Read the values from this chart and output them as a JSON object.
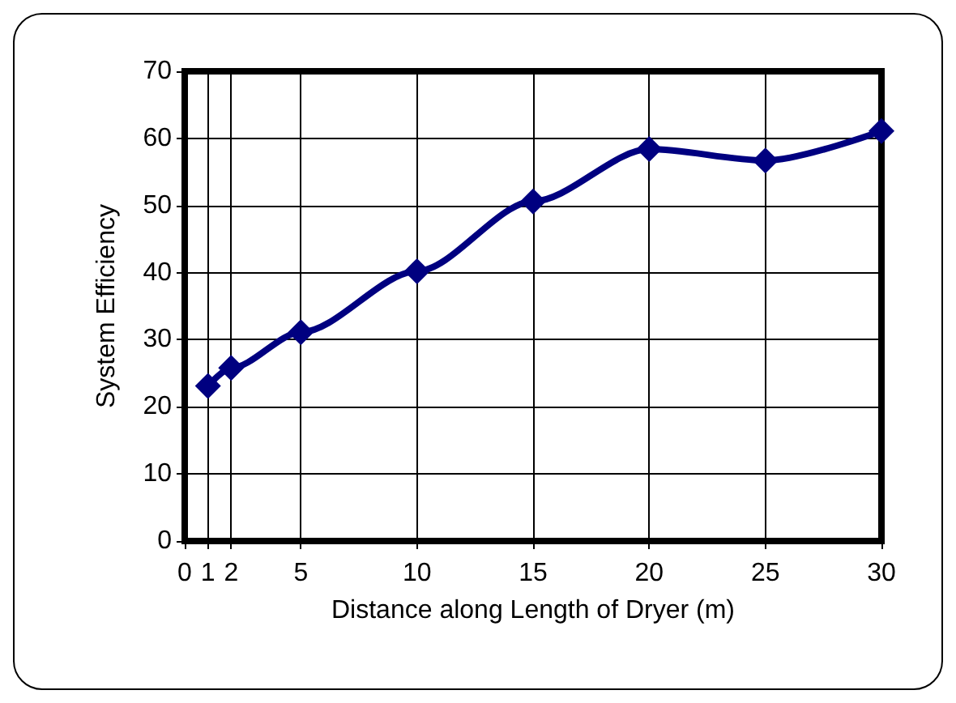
{
  "chart_data": {
    "type": "line",
    "xlabel": "Distance along Length of Dryer (m)",
    "ylabel": "System Efficiency",
    "x": [
      1,
      2,
      5,
      10,
      15,
      20,
      25,
      30
    ],
    "series": [
      {
        "color": "#000080",
        "values": [
          23.1,
          25.8,
          31.1,
          40.2,
          50.6,
          58.4,
          56.7,
          61.1
        ]
      }
    ],
    "xlim": [
      0,
      30
    ],
    "xticks": [
      0,
      1,
      2,
      5,
      10,
      15,
      20,
      25,
      30
    ],
    "ylim": [
      0,
      70
    ],
    "yticks": [
      0,
      10,
      20,
      30,
      40,
      50,
      60,
      70
    ],
    "grid": true,
    "marker": "diamond",
    "line_style": "solid"
  }
}
